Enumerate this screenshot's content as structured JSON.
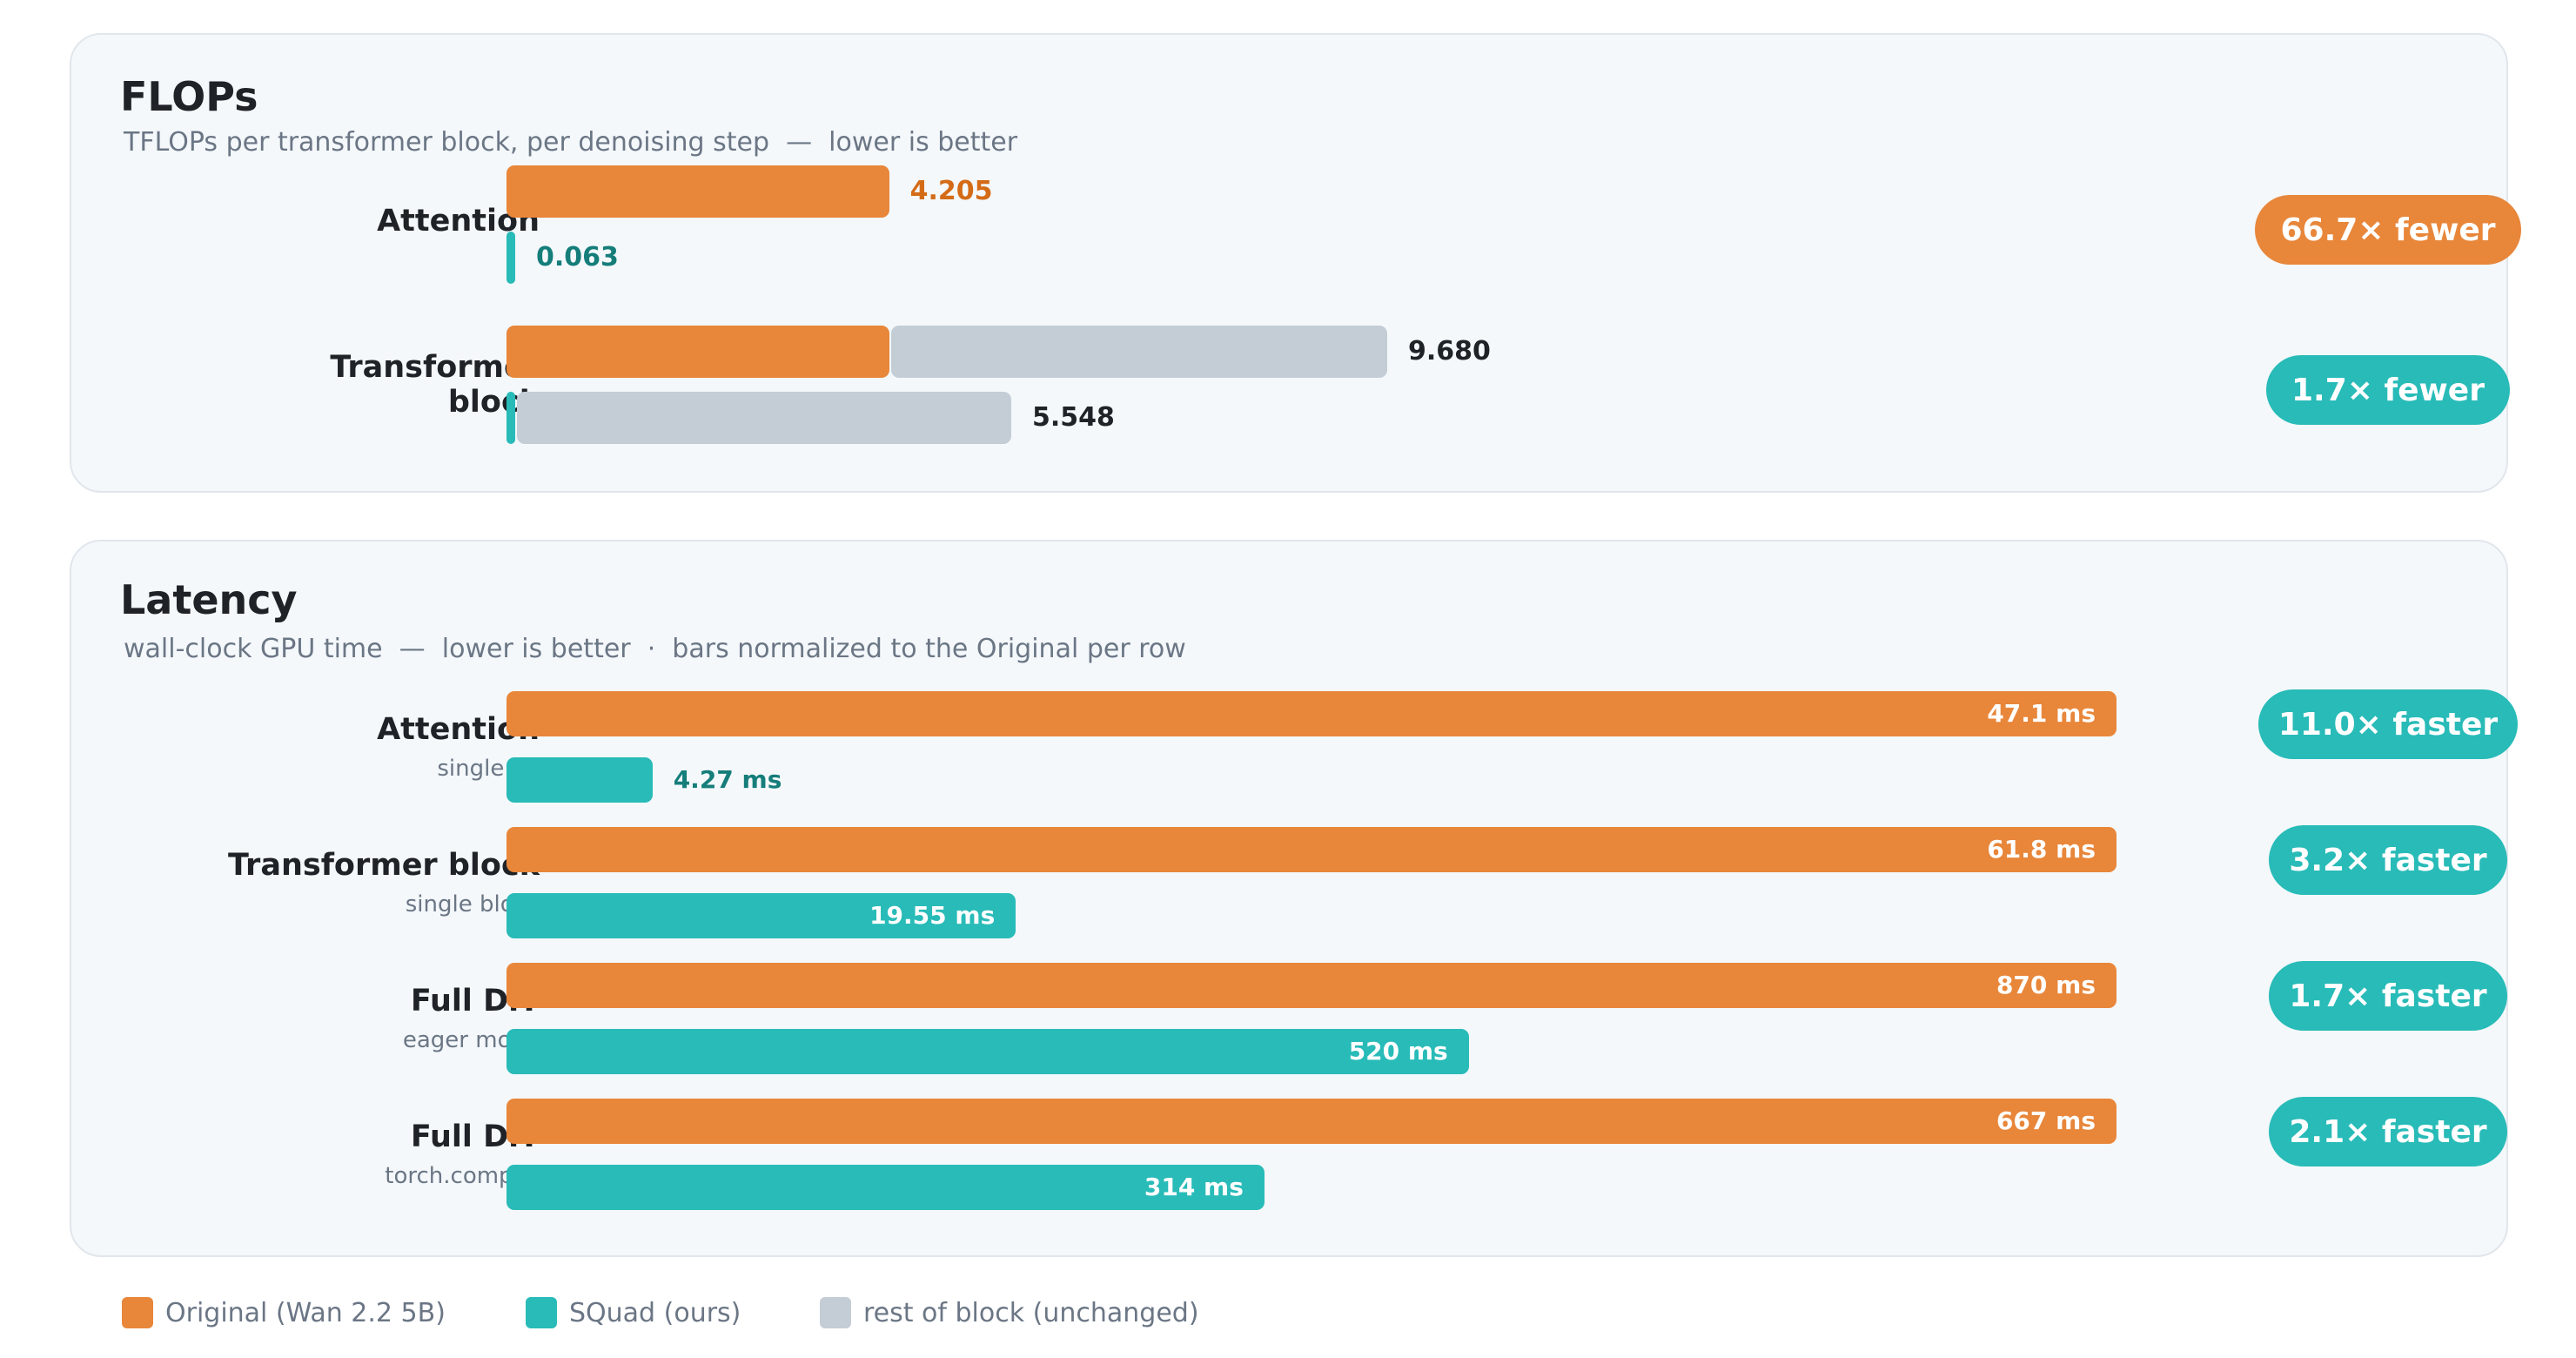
{
  "colors": {
    "original": "#e8863a",
    "squad": "#28bbb8",
    "rest": "#c4cdd5",
    "original_text": "#d46b17",
    "squad_text": "#157d7a"
  },
  "chart_data": [
    {
      "type": "bar",
      "orientation": "horizontal",
      "stacked": true,
      "title": "FLOPs",
      "subtitle": "TFLOPs per transformer block, per denoising step  —  lower is better",
      "xlim": [
        0,
        9.68
      ],
      "rows": [
        {
          "label_lines": [
            "Attention"
          ],
          "bars": [
            {
              "series": "original",
              "attention": 4.205,
              "rest": 0,
              "total": 4.205,
              "value_label": "4.205"
            },
            {
              "series": "squad",
              "attention": 0.063,
              "rest": 0,
              "total": 0.063,
              "value_label": "0.063"
            }
          ],
          "badge": "66.7× fewer",
          "badge_color": "orange"
        },
        {
          "label_lines": [
            "Transformer",
            "block"
          ],
          "bars": [
            {
              "series": "original",
              "attention": 4.205,
              "rest": 5.475,
              "total": 9.68,
              "value_label": "9.680"
            },
            {
              "series": "squad",
              "attention": 0.063,
              "rest": 5.485,
              "total": 5.548,
              "value_label": "5.548"
            }
          ],
          "badge": "1.7× fewer",
          "badge_color": "teal"
        }
      ]
    },
    {
      "type": "bar",
      "orientation": "horizontal",
      "title": "Latency",
      "subtitle": "wall-clock GPU time  —  lower is better  ·  bars normalized to the Original per row",
      "normalized_per_row": true,
      "rows": [
        {
          "label": "Attention",
          "sublabel": "single op",
          "original": 47.1,
          "squad": 4.27,
          "original_label": "47.1 ms",
          "squad_label": "4.27 ms",
          "badge": "11.0× faster"
        },
        {
          "label": "Transformer block",
          "sublabel": "single block",
          "original": 61.8,
          "squad": 19.55,
          "original_label": "61.8 ms",
          "squad_label": "19.55 ms",
          "badge": "3.2× faster"
        },
        {
          "label": "Full DiT",
          "sublabel": "eager mode",
          "original": 870,
          "squad": 520,
          "original_label": "870 ms",
          "squad_label": "520 ms",
          "badge": "1.7× faster"
        },
        {
          "label": "Full DiT",
          "sublabel": "torch.compile",
          "original": 667,
          "squad": 314,
          "original_label": "667 ms",
          "squad_label": "314 ms",
          "badge": "2.1× faster"
        }
      ]
    }
  ],
  "legend": [
    {
      "key": "original",
      "label": "Original (Wan 2.2 5B)"
    },
    {
      "key": "squad",
      "label": "SQuad (ours)"
    },
    {
      "key": "rest",
      "label": "rest of block (unchanged)"
    }
  ]
}
